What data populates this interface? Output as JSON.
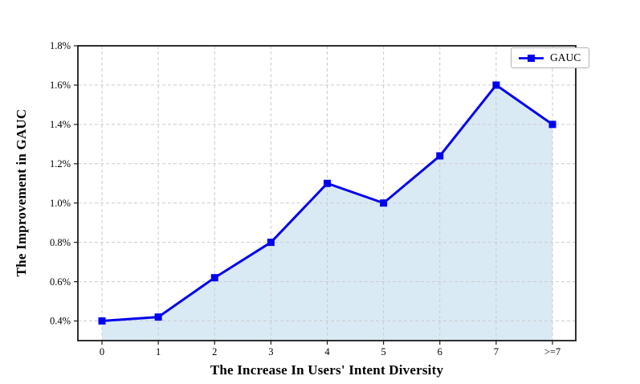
{
  "chart_data": {
    "type": "line",
    "title": "",
    "xlabel": "The Increase In Users' Intent Diversity",
    "ylabel": "The Improvement in GAUC",
    "categories": [
      "0",
      "1",
      "2",
      "3",
      "4",
      "5",
      "6",
      "7",
      ">=7"
    ],
    "series": [
      {
        "name": "GAUC",
        "values": [
          0.4,
          0.42,
          0.62,
          0.8,
          1.1,
          1.0,
          1.24,
          1.6,
          1.4
        ],
        "unit": "percent",
        "marker": "square",
        "area_fill": true
      }
    ],
    "y_ticks": [
      {
        "value": 0.4,
        "label": "0.4%"
      },
      {
        "value": 0.6,
        "label": "0.6%"
      },
      {
        "value": 0.8,
        "label": "0.8%"
      },
      {
        "value": 1.0,
        "label": "1.0%"
      },
      {
        "value": 1.2,
        "label": "1.2%"
      },
      {
        "value": 1.4,
        "label": "1.4%"
      },
      {
        "value": 1.6,
        "label": "1.6%"
      },
      {
        "value": 1.8,
        "label": "1.8%"
      }
    ],
    "ylim": [
      0.3,
      1.8
    ],
    "grid": {
      "on": true,
      "style": "dashed",
      "color": "#cbcbcb"
    },
    "legend": {
      "position": "top-right",
      "entries": [
        "GAUC"
      ]
    },
    "colors": {
      "line": "#0000ee",
      "marker": "#0000ee",
      "fill": "#daeaf5",
      "axis": "#1a1a1a",
      "text": "#000000"
    }
  }
}
